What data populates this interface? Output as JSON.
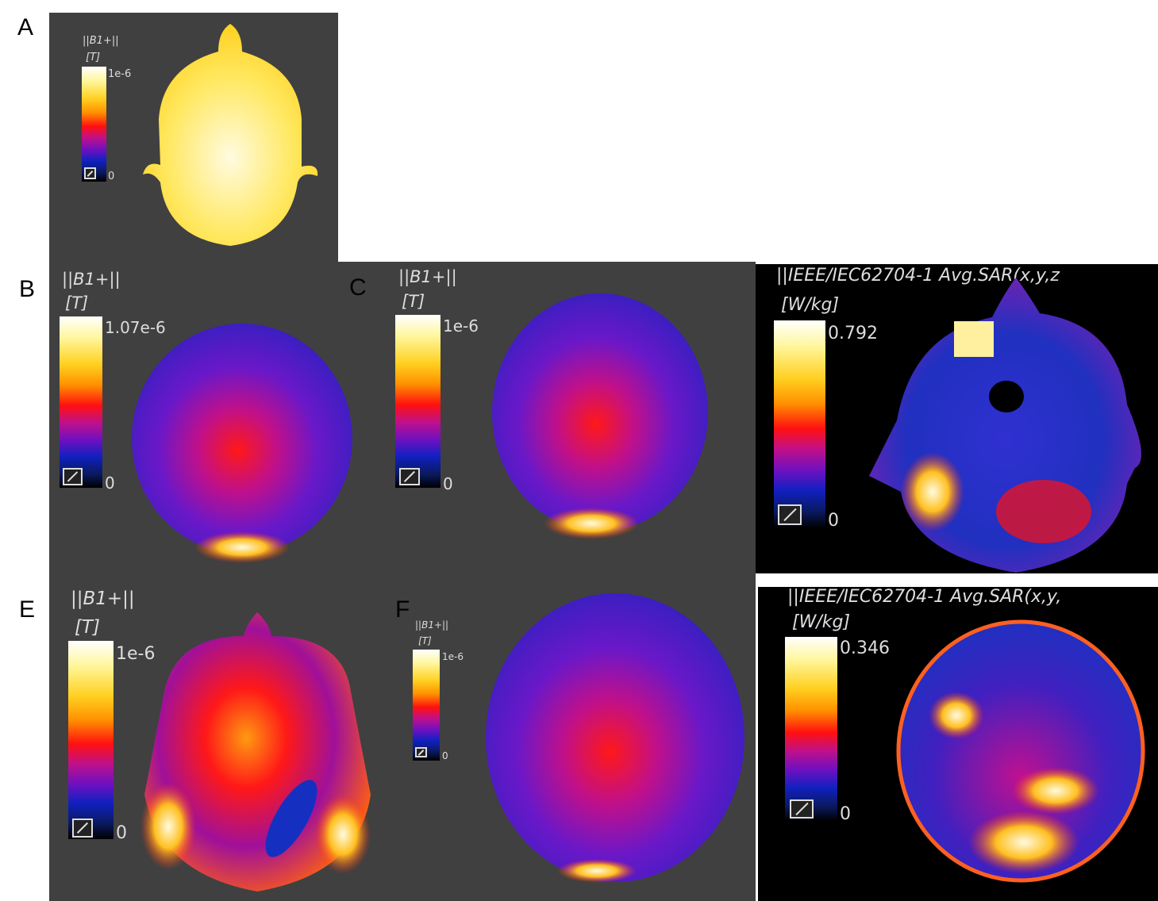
{
  "panels": [
    {
      "id": "A",
      "title": "||B1+||",
      "unit": "[T]",
      "max": "1e-6",
      "min": "0"
    },
    {
      "id": "B",
      "title": "||B1+||",
      "unit": "[T]",
      "max": "1.07e-6",
      "min": "0"
    },
    {
      "id": "C",
      "title": "||B1+||",
      "unit": "[T]",
      "max": "1e-6",
      "min": "0"
    },
    {
      "id": "D",
      "title": "||IEEE/IEC62704-1 Avg.SAR(x,y,z",
      "unit": "[W/kg]",
      "max": "0.792",
      "min": "0"
    },
    {
      "id": "E",
      "title": "||B1+||",
      "unit": "[T]",
      "max": "1e-6",
      "min": "0"
    },
    {
      "id": "F",
      "title": "||B1+||",
      "unit": "[T]",
      "max": "1e-6",
      "min": "0"
    },
    {
      "id": "G",
      "title": "||IEEE/IEC62704-1 Avg.SAR(x,y,",
      "unit": "[W/kg]",
      "max": "0.346",
      "min": "0"
    }
  ],
  "colormap": [
    "#ffffff",
    "#ffd020",
    "#ff9000",
    "#ff1010",
    "#c0108a",
    "#7010c0",
    "#1020c0",
    "#000000"
  ]
}
